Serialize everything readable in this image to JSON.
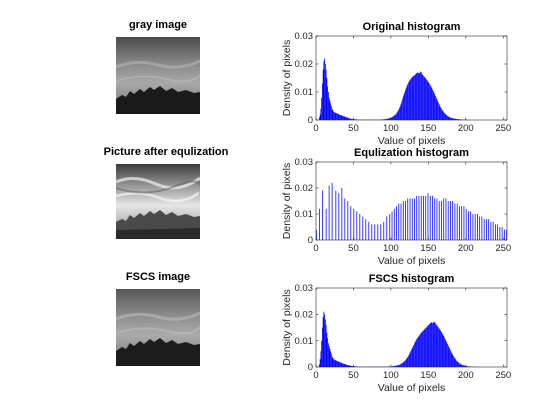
{
  "images": [
    {
      "title": "gray image",
      "style": "gray"
    },
    {
      "title": "Picture after equlization",
      "style": "equalized"
    },
    {
      "title": "FSCS image",
      "style": "gray"
    }
  ],
  "colors": {
    "bar": "#0000ff",
    "axis": "#262626"
  },
  "chart_data": [
    {
      "type": "bar",
      "title": "Original histogram",
      "xlabel": "Value of pixels",
      "ylabel": "Density of pixels",
      "xlim": [
        0,
        255
      ],
      "ylim": [
        0,
        0.03
      ],
      "xticks": [
        "0",
        "50",
        "100",
        "150",
        "200",
        "250"
      ],
      "yticks": [
        "0",
        "0.01",
        "0.02",
        "0.03"
      ],
      "grid": false,
      "series": [
        {
          "values": [
            0,
            0,
            0,
            0,
            0.001,
            0.002,
            0.004,
            0.008,
            0.013,
            0.018,
            0.021,
            0.022,
            0.02,
            0.018,
            0.015,
            0.012,
            0.01,
            0.008,
            0.007,
            0.006,
            0.005,
            0.004,
            0.0035,
            0.003,
            0.0028,
            0.0026,
            0.0025,
            0.0024,
            0.0023,
            0.0022,
            0.002,
            0.0019,
            0.0018,
            0.0017,
            0.0016,
            0.0015,
            0.0014,
            0.0013,
            0.0012,
            0.0011,
            0.001,
            0.0009,
            0.0008,
            0.0007,
            0.0006,
            0.0005,
            0.0005,
            0.0004,
            0.0004,
            0.0003,
            0.0003,
            0.0003,
            0.0002,
            0.0002,
            0.0002,
            0.0002,
            0.0001,
            0.0001,
            0.0001,
            0.0001,
            0.0001,
            0.0001,
            0.0001,
            0.0001,
            0.0001,
            0.0001,
            0.0001,
            0.0001,
            0.0001,
            0.0001,
            0.0001,
            0.0001,
            0.0001,
            0.0001,
            0.0001,
            0.0001,
            0.0001,
            0.0001,
            0.0001,
            0.0001,
            0.0001,
            0.0001,
            0.0001,
            0.0001,
            0.0001,
            0.0001,
            0.0001,
            0.0002,
            0.0002,
            0.0002,
            0.0002,
            0.0003,
            0.0003,
            0.0003,
            0.0004,
            0.0005,
            0.0005,
            0.0006,
            0.0007,
            0.0008,
            0.0009,
            0.001,
            0.0012,
            0.0014,
            0.0016,
            0.0018,
            0.002,
            0.0024,
            0.0028,
            0.0033,
            0.0038,
            0.0044,
            0.005,
            0.0058,
            0.0066,
            0.0075,
            0.0084,
            0.0092,
            0.01,
            0.0108,
            0.0115,
            0.0122,
            0.0128,
            0.0134,
            0.0139,
            0.0143,
            0.0147,
            0.015,
            0.0153,
            0.0156,
            0.0158,
            0.016,
            0.0162,
            0.0165,
            0.0168,
            0.017,
            0.0168,
            0.0166,
            0.0169,
            0.0173,
            0.0171,
            0.0165,
            0.016,
            0.0158,
            0.0155,
            0.0152,
            0.0148,
            0.0145,
            0.0142,
            0.0138,
            0.0134,
            0.013,
            0.0125,
            0.012,
            0.0115,
            0.011,
            0.0104,
            0.0098,
            0.0092,
            0.0086,
            0.008,
            0.0074,
            0.0068,
            0.0062,
            0.0056,
            0.005,
            0.0045,
            0.004,
            0.0036,
            0.0032,
            0.0028,
            0.0025,
            0.0022,
            0.0019,
            0.0017,
            0.0015,
            0.0013,
            0.0011,
            0.001,
            0.0009,
            0.0008,
            0.0007,
            0.0006,
            0.0006,
            0.0005,
            0.0005,
            0.0004,
            0.0004,
            0.0003,
            0.0003,
            0.0003,
            0.0002,
            0.0002,
            0.0002,
            0.0002,
            0.0001,
            0.0001,
            0.0001,
            0.0001,
            0.0001,
            0.0001,
            0.0001,
            0,
            0,
            0,
            0,
            0,
            0,
            0,
            0,
            0,
            0,
            0,
            0,
            0,
            0,
            0,
            0,
            0,
            0,
            0,
            0,
            0,
            0,
            0,
            0,
            0,
            0,
            0,
            0,
            0,
            0,
            0,
            0,
            0,
            0,
            0,
            0,
            0,
            0,
            0,
            0,
            0,
            0,
            0,
            0,
            0,
            0,
            0,
            0,
            0,
            0,
            0,
            0,
            0,
            0
          ]
        }
      ]
    },
    {
      "type": "bar",
      "title": "Equlization histogram",
      "xlabel": "Value of pixels",
      "ylabel": "Density of pixels",
      "xlim": [
        0,
        255
      ],
      "ylim": [
        0,
        0.03
      ],
      "xticks": [
        "0",
        "50",
        "100",
        "150",
        "200",
        "250"
      ],
      "yticks": [
        "0",
        "0.01",
        "0.02",
        "0.03"
      ],
      "grid": false,
      "bars": [
        [
          0,
          0.004
        ],
        [
          4,
          0.012
        ],
        [
          8,
          0.019
        ],
        [
          13,
          0.012
        ],
        [
          17,
          0.021
        ],
        [
          21,
          0.022
        ],
        [
          26,
          0.019
        ],
        [
          30,
          0.018
        ],
        [
          34,
          0.02
        ],
        [
          38,
          0.016
        ],
        [
          42,
          0.015
        ],
        [
          46,
          0.013
        ],
        [
          50,
          0.012
        ],
        [
          54,
          0.011
        ],
        [
          58,
          0.01
        ],
        [
          62,
          0.009
        ],
        [
          66,
          0.008
        ],
        [
          70,
          0.007
        ],
        [
          74,
          0.006
        ],
        [
          78,
          0.006
        ],
        [
          82,
          0.006
        ],
        [
          86,
          0.006
        ],
        [
          90,
          0.007
        ],
        [
          94,
          0.009
        ],
        [
          98,
          0.01
        ],
        [
          101,
          0.011
        ],
        [
          104,
          0.012
        ],
        [
          107,
          0.013
        ],
        [
          110,
          0.014
        ],
        [
          113,
          0.014
        ],
        [
          116,
          0.015
        ],
        [
          119,
          0.015
        ],
        [
          122,
          0.016
        ],
        [
          125,
          0.016
        ],
        [
          128,
          0.016
        ],
        [
          131,
          0.016
        ],
        [
          134,
          0.017
        ],
        [
          137,
          0.017
        ],
        [
          140,
          0.017
        ],
        [
          143,
          0.017
        ],
        [
          146,
          0.017
        ],
        [
          149,
          0.018
        ],
        [
          152,
          0.017
        ],
        [
          155,
          0.017
        ],
        [
          158,
          0.016
        ],
        [
          161,
          0.016
        ],
        [
          164,
          0.015
        ],
        [
          167,
          0.015
        ],
        [
          170,
          0.016
        ],
        [
          173,
          0.016
        ],
        [
          176,
          0.015
        ],
        [
          179,
          0.015
        ],
        [
          182,
          0.015
        ],
        [
          185,
          0.014
        ],
        [
          188,
          0.014
        ],
        [
          191,
          0.013
        ],
        [
          194,
          0.013
        ],
        [
          197,
          0.013
        ],
        [
          200,
          0.012
        ],
        [
          203,
          0.011
        ],
        [
          206,
          0.011
        ],
        [
          209,
          0.01
        ],
        [
          212,
          0.01
        ],
        [
          215,
          0.01
        ],
        [
          218,
          0.009
        ],
        [
          221,
          0.009
        ],
        [
          224,
          0.008
        ],
        [
          227,
          0.008
        ],
        [
          230,
          0.008
        ],
        [
          233,
          0.007
        ],
        [
          236,
          0.007
        ],
        [
          239,
          0.006
        ],
        [
          242,
          0.006
        ],
        [
          245,
          0.005
        ],
        [
          248,
          0.005
        ],
        [
          251,
          0.004
        ],
        [
          254,
          0.004
        ]
      ]
    },
    {
      "type": "bar",
      "title": "FSCS histogram",
      "xlabel": "Value of pixels",
      "ylabel": "Density of pixels",
      "xlim": [
        0,
        255
      ],
      "ylim": [
        0,
        0.03
      ],
      "xticks": [
        "0",
        "50",
        "100",
        "150",
        "200",
        "250"
      ],
      "yticks": [
        "0",
        "0.01",
        "0.02",
        "0.03"
      ],
      "grid": false,
      "series": [
        {
          "values": [
            0,
            0,
            0,
            0,
            0.001,
            0.003,
            0.006,
            0.01,
            0.015,
            0.019,
            0.021,
            0.02,
            0.018,
            0.016,
            0.013,
            0.011,
            0.009,
            0.008,
            0.007,
            0.006,
            0.005,
            0.004,
            0.0035,
            0.003,
            0.0028,
            0.0026,
            0.0025,
            0.0024,
            0.0023,
            0.0021,
            0.002,
            0.0019,
            0.0018,
            0.0016,
            0.0015,
            0.0014,
            0.0013,
            0.0012,
            0.0011,
            0.001,
            0.0009,
            0.0008,
            0.0007,
            0.0007,
            0.0006,
            0.0005,
            0.0005,
            0.0004,
            0.0004,
            0.0003,
            0.0003,
            0.0003,
            0.0002,
            0.0002,
            0.0002,
            0.0002,
            0.0001,
            0.0001,
            0.0001,
            0.0001,
            0.0001,
            0.0001,
            0.0001,
            0.0001,
            0.0001,
            0.0001,
            0.0001,
            0.0001,
            0.0001,
            0.0001,
            0.0001,
            0.0001,
            0.0001,
            0.0001,
            0.0001,
            0.0001,
            0.0001,
            0.0001,
            0.0001,
            0.0001,
            0.0001,
            0.0001,
            0.0001,
            0.0001,
            0.0001,
            0.0001,
            0.0001,
            0.0001,
            0.0001,
            0.0001,
            0.0001,
            0.0001,
            0.0001,
            0.0001,
            0.0001,
            0.0001,
            0.0002,
            0.0002,
            0.0002,
            0.0002,
            0.0002,
            0.0003,
            0.0003,
            0.0003,
            0.0004,
            0.0004,
            0.0005,
            0.0005,
            0.0006,
            0.0007,
            0.0008,
            0.0009,
            0.001,
            0.0012,
            0.0014,
            0.0016,
            0.0018,
            0.002,
            0.0023,
            0.0026,
            0.003,
            0.0034,
            0.0038,
            0.0043,
            0.0048,
            0.0054,
            0.006,
            0.0066,
            0.0072,
            0.0078,
            0.0084,
            0.009,
            0.0096,
            0.0101,
            0.0106,
            0.011,
            0.0114,
            0.0118,
            0.0122,
            0.0126,
            0.013,
            0.0133,
            0.0136,
            0.0139,
            0.0142,
            0.0145,
            0.0148,
            0.0151,
            0.0154,
            0.0157,
            0.016,
            0.0163,
            0.0166,
            0.0168,
            0.017,
            0.0166,
            0.0169,
            0.0172,
            0.017,
            0.0166,
            0.0162,
            0.0158,
            0.0154,
            0.015,
            0.0146,
            0.0142,
            0.0138,
            0.0133,
            0.0128,
            0.0123,
            0.0118,
            0.0112,
            0.0106,
            0.01,
            0.0094,
            0.0088,
            0.0082,
            0.0076,
            0.007,
            0.0064,
            0.0058,
            0.0052,
            0.0047,
            0.0042,
            0.0037,
            0.0033,
            0.0029,
            0.0025,
            0.0022,
            0.0019,
            0.0016,
            0.0014,
            0.0012,
            0.001,
            0.0009,
            0.0008,
            0.0007,
            0.0006,
            0.0005,
            0.0004,
            0.0004,
            0.0003,
            0.0003,
            0.0002,
            0.0002,
            0.0002,
            0.0001,
            0.0001,
            0.0001,
            0.0001,
            0.0001,
            0.0001,
            0.0001,
            0,
            0,
            0,
            0,
            0,
            0,
            0,
            0,
            0,
            0,
            0,
            0,
            0,
            0,
            0,
            0,
            0,
            0,
            0,
            0,
            0,
            0,
            0,
            0,
            0,
            0,
            0,
            0,
            0,
            0,
            0,
            0,
            0,
            0,
            0,
            0,
            0,
            0,
            0,
            0,
            0,
            0,
            0
          ]
        }
      ]
    }
  ]
}
